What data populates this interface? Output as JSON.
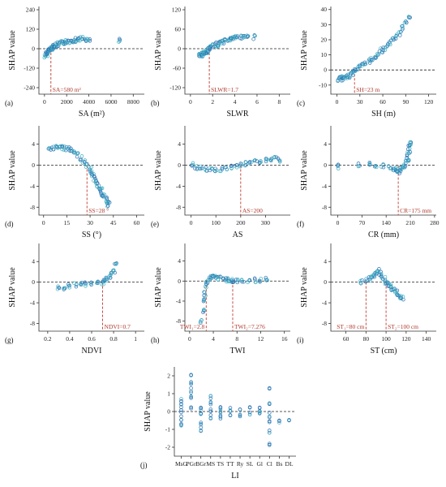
{
  "y_label": "SHAP value",
  "colors": {
    "point": "#2f6fb3",
    "point_alt": "#3fb0c2",
    "threshold": "#c0392b",
    "zero": "#222222"
  },
  "chart_data": [
    {
      "id": "a",
      "panel_label": "(a)",
      "type": "scatter",
      "xlabel": "SA (m²)",
      "xlim": [
        -500,
        9000
      ],
      "ylim": [
        -280,
        260
      ],
      "xticks": [
        0,
        2000,
        4000,
        6000,
        8000
      ],
      "yticks": [
        -240,
        -120,
        0,
        120,
        240
      ],
      "thresholds": [
        {
          "x": 580,
          "label": "SA=580 m²"
        }
      ],
      "series": [
        {
          "x": [
            100,
            150,
            200,
            250,
            300,
            350,
            420,
            500,
            580,
            650,
            750,
            850,
            950,
            1100,
            1250,
            1400,
            1600,
            1800,
            2000,
            2200,
            2400,
            2600,
            2800,
            3000,
            3200,
            3500,
            3800,
            4000,
            6800
          ],
          "y": [
            -45,
            -38,
            -33,
            -28,
            -22,
            -18,
            -12,
            -6,
            0,
            5,
            10,
            14,
            18,
            22,
            26,
            30,
            34,
            38,
            42,
            45,
            48,
            52,
            55,
            58,
            62,
            60,
            58,
            50,
            48
          ]
        }
      ]
    },
    {
      "id": "b",
      "panel_label": "(b)",
      "type": "scatter",
      "xlabel": "SLWR",
      "xlim": [
        -0.5,
        9
      ],
      "ylim": [
        -140,
        130
      ],
      "xticks": [
        0,
        2,
        4,
        6,
        8
      ],
      "yticks": [
        -120,
        -60,
        0,
        60,
        120
      ],
      "thresholds": [
        {
          "x": 1.7,
          "label": "SLWR=1.7"
        }
      ],
      "series": [
        {
          "x": [
            0.8,
            0.9,
            1.0,
            1.1,
            1.2,
            1.3,
            1.4,
            1.5,
            1.6,
            1.7,
            1.8,
            2.0,
            2.2,
            2.4,
            2.6,
            2.8,
            3.0,
            3.2,
            3.4,
            3.6,
            3.8,
            4.0,
            4.2,
            4.5,
            4.8,
            5.2,
            5.8
          ],
          "y": [
            -22,
            -20,
            -18,
            -16,
            -14,
            -12,
            -10,
            -8,
            -4,
            0,
            3,
            7,
            10,
            13,
            16,
            19,
            22,
            25,
            28,
            30,
            32,
            34,
            36,
            35,
            38,
            40,
            36
          ]
        }
      ]
    },
    {
      "id": "c",
      "panel_label": "(c)",
      "type": "scatter",
      "xlabel": "SH (m)",
      "xlim": [
        -8,
        130
      ],
      "ylim": [
        -16,
        42
      ],
      "xticks": [
        0,
        30,
        60,
        90,
        120
      ],
      "yticks": [
        -10,
        0,
        10,
        20,
        30,
        40
      ],
      "thresholds": [
        {
          "x": 23,
          "label": "SH=23 m"
        }
      ],
      "series": [
        {
          "x": [
            2,
            5,
            8,
            10,
            12,
            15,
            18,
            20,
            23,
            26,
            30,
            34,
            38,
            42,
            46,
            50,
            54,
            58,
            62,
            66,
            70,
            74,
            78,
            82,
            86,
            90,
            95
          ],
          "y": [
            -6,
            -6,
            -5.5,
            -5,
            -5,
            -4,
            -3,
            -2,
            0,
            1,
            2,
            3,
            4,
            6,
            7,
            9,
            11,
            13,
            14,
            16,
            18,
            20,
            22,
            24,
            28,
            32,
            36
          ]
        }
      ]
    },
    {
      "id": "d",
      "panel_label": "(d)",
      "type": "scatter",
      "xlabel": "SS (°)",
      "xlim": [
        -3,
        65
      ],
      "ylim": [
        -9.5,
        7.5
      ],
      "xticks": [
        0,
        15,
        30,
        45,
        60
      ],
      "yticks": [
        -8,
        -4,
        0,
        4
      ],
      "thresholds": [
        {
          "x": 28,
          "label": "SS=28 °"
        }
      ],
      "series": [
        {
          "x": [
            4,
            6,
            8,
            10,
            12,
            14,
            16,
            18,
            20,
            22,
            24,
            26,
            28,
            30,
            31,
            32,
            33,
            34,
            35,
            36,
            37,
            38,
            39,
            40,
            41,
            42
          ],
          "y": [
            3,
            3.2,
            3.4,
            3.5,
            3.4,
            3.2,
            3,
            2.8,
            2.4,
            2,
            1.4,
            0.8,
            0,
            -0.8,
            -1.4,
            -2,
            -2.6,
            -3.2,
            -3.8,
            -4.2,
            -4.8,
            -5.4,
            -6,
            -6.5,
            -7,
            -7.5
          ]
        }
      ]
    },
    {
      "id": "e",
      "panel_label": "(e)",
      "type": "scatter",
      "xlabel": "AS",
      "xlim": [
        -25,
        400
      ],
      "ylim": [
        -9.5,
        7.5
      ],
      "xticks": [
        0,
        100,
        200,
        300
      ],
      "yticks": [
        -8,
        -4,
        0,
        4
      ],
      "thresholds": [
        {
          "x": 200,
          "label": "AS=200"
        }
      ],
      "series": [
        {
          "x": [
            5,
            20,
            40,
            60,
            80,
            100,
            120,
            140,
            160,
            180,
            200,
            220,
            240,
            260,
            280,
            300,
            320,
            340,
            355
          ],
          "y": [
            0.2,
            -0.4,
            -0.6,
            -0.8,
            -0.9,
            -0.9,
            -0.8,
            -0.6,
            -0.4,
            -0.2,
            0,
            0.2,
            0.4,
            0.6,
            0.8,
            1,
            1.1,
            1.2,
            1
          ]
        }
      ]
    },
    {
      "id": "f",
      "panel_label": "(f)",
      "type": "scatter",
      "xlabel": "CR (mm)",
      "xlim": [
        -20,
        285
      ],
      "ylim": [
        -9.5,
        7.5
      ],
      "xticks": [
        0,
        70,
        140,
        210,
        280
      ],
      "yticks": [
        -8,
        -4,
        0,
        4
      ],
      "thresholds": [
        {
          "x": 175,
          "label": "CR=175 mm"
        }
      ],
      "series": [
        {
          "x": [
            0,
            60,
            90,
            110,
            130,
            150,
            160,
            170,
            175,
            180,
            185,
            190,
            195,
            200,
            202,
            204,
            206,
            208,
            210
          ],
          "y": [
            -0.3,
            0,
            0.1,
            0,
            -0.2,
            -0.4,
            -0.6,
            -0.8,
            -1,
            -1.2,
            -0.8,
            -0.4,
            0,
            0.6,
            1.2,
            2,
            2.8,
            3.5,
            4.2
          ]
        }
      ]
    },
    {
      "id": "g",
      "panel_label": "(g)",
      "type": "scatter",
      "xlabel": "NDVI",
      "xlim": [
        0.12,
        1.08
      ],
      "ylim": [
        -9.5,
        7.5
      ],
      "xticks": [
        0.2,
        0.4,
        0.6,
        0.8,
        1.0
      ],
      "yticks": [
        -8,
        -4,
        0,
        4
      ],
      "thresholds": [
        {
          "x": 0.7,
          "label": "NDVI=0.7"
        }
      ],
      "series": [
        {
          "x": [
            0.3,
            0.35,
            0.4,
            0.45,
            0.5,
            0.55,
            0.6,
            0.65,
            0.7,
            0.72,
            0.74,
            0.76,
            0.78,
            0.8,
            0.82
          ],
          "y": [
            -1.2,
            -1,
            -0.8,
            -0.6,
            -0.5,
            -0.4,
            -0.3,
            -0.2,
            0,
            0.3,
            0.6,
            1,
            1.5,
            2.2,
            3.5
          ]
        }
      ]
    },
    {
      "id": "h",
      "panel_label": "(h)",
      "type": "scatter",
      "xlabel": "TWI",
      "xlim": [
        -0.8,
        17
      ],
      "ylim": [
        -10,
        7.5
      ],
      "xticks": [
        0,
        4,
        8,
        12,
        16
      ],
      "yticks": [
        -8,
        -4,
        0,
        4
      ],
      "thresholds": [
        {
          "x": 2.8,
          "label": "TWI₁=2.8"
        },
        {
          "x": 7.276,
          "label": "TWI₂=7.276"
        }
      ],
      "series": [
        {
          "x": [
            2.0,
            2.2,
            2.4,
            2.6,
            2.8,
            3.0,
            3.3,
            3.6,
            4,
            4.5,
            5,
            5.5,
            6,
            6.5,
            7,
            7.3,
            8,
            9,
            10,
            11,
            12,
            13
          ],
          "y": [
            -8,
            -6,
            -4,
            -2.5,
            -1,
            0,
            0.4,
            0.6,
            0.8,
            0.6,
            0.5,
            0.4,
            0.3,
            0.2,
            0.1,
            0,
            0,
            0.1,
            0,
            0.2,
            0.1,
            0.3
          ]
        }
      ]
    },
    {
      "id": "i",
      "panel_label": "(i)",
      "type": "scatter",
      "xlabel": "ST (cm)",
      "xlim": [
        45,
        150
      ],
      "ylim": [
        -9.5,
        7.5
      ],
      "xticks": [
        60,
        80,
        100,
        120,
        140
      ],
      "yticks": [
        -8,
        -4,
        0,
        4
      ],
      "thresholds": [
        {
          "x": 80,
          "label": "ST₁=80 cm"
        },
        {
          "x": 100,
          "label": "ST₂=100 cm"
        }
      ],
      "series": [
        {
          "x": [
            75,
            80,
            84,
            86,
            88,
            90,
            92,
            94,
            96,
            98,
            100,
            102,
            104,
            106,
            108,
            110,
            112,
            114,
            116
          ],
          "y": [
            0,
            0.3,
            0.6,
            1,
            1.4,
            2,
            2.4,
            1.8,
            1.2,
            0.6,
            0,
            -0.4,
            -0.8,
            -1.2,
            -1.6,
            -2,
            -2.4,
            -2.8,
            -3.2
          ]
        }
      ]
    },
    {
      "id": "j",
      "panel_label": "(j)",
      "type": "scatter",
      "xlabel": "LI",
      "categories": [
        "MsG",
        "PGr",
        "BGr",
        "MS",
        "TS",
        "TT",
        "Ry",
        "SL",
        "Gl",
        "Cl",
        "Bs",
        "DL"
      ],
      "ylim": [
        -2.5,
        2.5
      ],
      "yticks": [
        -2,
        -1,
        0,
        1,
        2
      ],
      "thresholds": [],
      "series": [
        {
          "category_index": [
            0,
            0,
            0,
            0,
            0,
            1,
            1,
            1,
            1,
            1,
            2,
            2,
            2,
            2,
            3,
            3,
            3,
            3,
            4,
            4,
            4,
            5,
            5,
            6,
            6,
            7,
            7,
            8,
            8,
            9,
            9,
            9,
            9,
            9,
            9,
            10,
            11
          ],
          "y": [
            -0.8,
            -0.4,
            0,
            0.3,
            0.6,
            0.2,
            0.8,
            1.2,
            1.6,
            2.0,
            -1.0,
            -0.6,
            -0.2,
            0.1,
            -0.3,
            0,
            0.4,
            0.8,
            -0.4,
            -0.1,
            0.2,
            -0.2,
            0.1,
            -0.2,
            0.2,
            -0.1,
            0.3,
            -0.1,
            0.1,
            -1.8,
            -1.2,
            -0.6,
            -0.2,
            0.4,
            1.2,
            -0.5,
            -0.6
          ]
        }
      ]
    }
  ]
}
